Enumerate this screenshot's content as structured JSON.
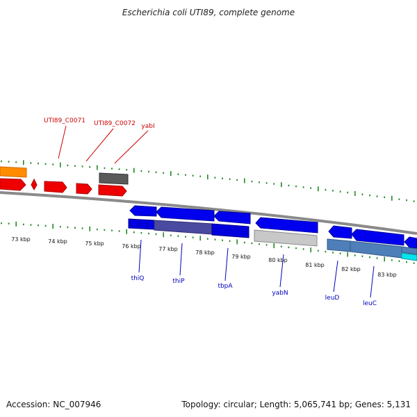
{
  "title": "Escherichia coli UTI89, complete genome",
  "footer": {
    "accession": "Accession: NC_007946",
    "summary": "Topology: circular; Length: 5,065,741 bp; Genes: 5,131"
  },
  "colors": {
    "forward_label": "#cc0000",
    "reverse_label": "#0000bb",
    "tick": "#228822",
    "backbone": "#8a8a8a",
    "leader_forward": "#cc0000",
    "leader_reverse": "#0000bb"
  },
  "ruler_labels": [
    "73 kbp",
    "74 kbp",
    "75 kbp",
    "76 kbp",
    "77 kbp",
    "78 kbp",
    "79 kbp",
    "80 kbp",
    "81 kbp",
    "82 kbp",
    "83 kbp"
  ],
  "forward_gene_labels": [
    "UTI89_C0071",
    "UTI89_C0072",
    "yabI"
  ],
  "reverse_gene_labels": [
    "thiQ",
    "thiP",
    "tbpA",
    "yabN",
    "leuD",
    "leuC"
  ]
}
